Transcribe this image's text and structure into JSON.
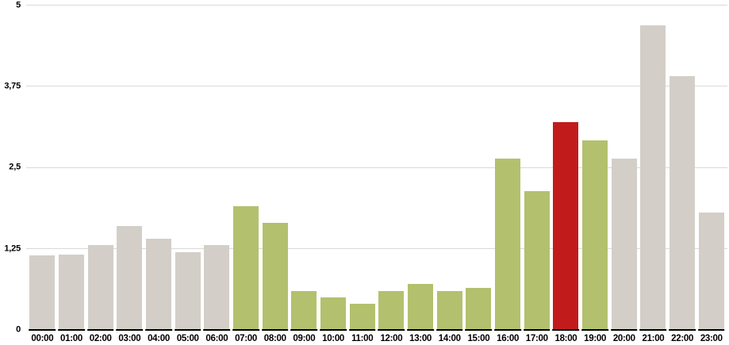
{
  "chart_data": {
    "type": "bar",
    "title": "",
    "xlabel": "",
    "ylabel": "",
    "categories": [
      "00:00",
      "01:00",
      "02:00",
      "03:00",
      "04:00",
      "05:00",
      "06:00",
      "07:00",
      "08:00",
      "09:00",
      "10:00",
      "11:00",
      "12:00",
      "13:00",
      "14:00",
      "15:00",
      "16:00",
      "17:00",
      "18:00",
      "19:00",
      "20:00",
      "21:00",
      "22:00",
      "23:00"
    ],
    "values": [
      1.13,
      1.15,
      1.29,
      1.59,
      1.39,
      1.19,
      1.29,
      1.89,
      1.64,
      0.59,
      0.49,
      0.39,
      0.59,
      0.69,
      0.59,
      0.63,
      2.63,
      2.12,
      3.19,
      2.9,
      2.63,
      4.68,
      3.9,
      1.79
    ],
    "bar_colors": [
      "gray",
      "gray",
      "gray",
      "gray",
      "gray",
      "gray",
      "gray",
      "green",
      "green",
      "green",
      "green",
      "green",
      "green",
      "green",
      "green",
      "green",
      "green",
      "green",
      "red",
      "green",
      "gray",
      "gray",
      "gray",
      "gray"
    ],
    "palette": {
      "gray": "#d3cfc8",
      "green": "#b3c06e",
      "red": "#c21b1c"
    },
    "ylim": [
      0,
      5
    ],
    "yticks": [
      {
        "label": "5",
        "value": 5
      },
      {
        "label": "3,75",
        "value": 3.75
      },
      {
        "label": "2,5",
        "value": 2.5
      },
      {
        "label": "1,25",
        "value": 1.25
      },
      {
        "label": "0",
        "value": 0
      }
    ],
    "grid": true,
    "gridline_color": "#d9d9d9",
    "axis_color": "#000000",
    "background": "#ffffff",
    "legend": "none"
  }
}
